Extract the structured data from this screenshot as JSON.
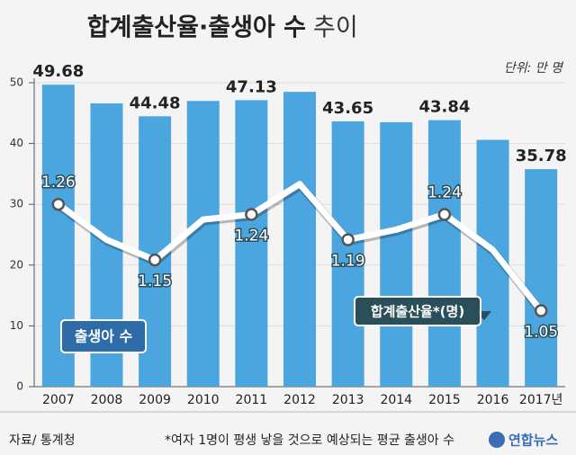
{
  "chart_data": {
    "type": "bar_line",
    "title": "합계출산율·출생아 수",
    "title_suffix": "추이",
    "unit": "단위: 만 명",
    "categories": [
      "2007",
      "2008",
      "2009",
      "2010",
      "2011",
      "2012",
      "2013",
      "2014",
      "2015",
      "2016",
      "2017년"
    ],
    "series": [
      {
        "name": "출생아 수",
        "type": "bar",
        "color": "#4ba6e0",
        "values": [
          49.68,
          46.6,
          44.48,
          47.0,
          47.13,
          48.5,
          43.65,
          43.5,
          43.84,
          40.6,
          35.78
        ],
        "value_labels": [
          "49.68",
          null,
          "44.48",
          null,
          "47.13",
          null,
          "43.65",
          null,
          "43.84",
          null,
          "35.78"
        ]
      },
      {
        "name": "합계출산율*(명)",
        "type": "line",
        "axis": "y2",
        "color": "#ffffff",
        "values": [
          1.26,
          1.19,
          1.15,
          1.23,
          1.24,
          1.3,
          1.19,
          1.21,
          1.24,
          1.17,
          1.05
        ],
        "value_labels": [
          "1.26",
          null,
          "1.15",
          null,
          "1.24",
          null,
          "1.19",
          null,
          "1.24",
          null,
          "1.05"
        ]
      }
    ],
    "ylim": [
      0,
      50
    ],
    "yticks": [
      0,
      10,
      20,
      30,
      40,
      50
    ],
    "y2lim": [
      0.9,
      1.5
    ],
    "grid": true,
    "source": "자료/ 통계청",
    "footnote": "*여자 1명이 평생 낳을 것으로 예상되는 평균 출생아 수",
    "logo": "연합뉴스"
  }
}
